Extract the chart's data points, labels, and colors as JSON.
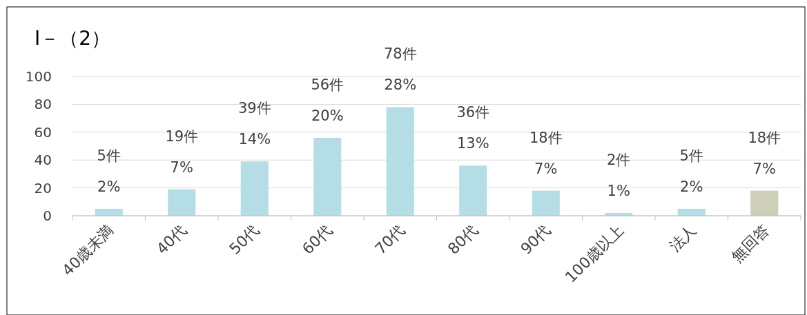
{
  "chart_data": {
    "type": "bar",
    "title": "Ⅰ－（2）",
    "categories": [
      "40歳未満",
      "40代",
      "50代",
      "60代",
      "70代",
      "80代",
      "90代",
      "100歳以上",
      "法人",
      "無回答"
    ],
    "values": [
      5,
      19,
      39,
      56,
      78,
      36,
      18,
      2,
      5,
      18
    ],
    "colors": [
      "#b4dde6",
      "#b4dde6",
      "#b4dde6",
      "#b4dde6",
      "#b4dde6",
      "#b4dde6",
      "#b4dde6",
      "#b4dde6",
      "#b4dde6",
      "#cdcfb9"
    ],
    "value_labels": [
      "5件\n2%",
      "19件\n7%",
      "39件\n14%",
      "56件\n20%",
      "78件\n28%",
      "36件\n13%",
      "18件\n7%",
      "2件\n1%",
      "5件\n2%",
      "18件\n7%"
    ],
    "ylim": [
      0,
      100
    ],
    "yticks": [
      0,
      20,
      40,
      60,
      80,
      100
    ],
    "grid": "y"
  }
}
